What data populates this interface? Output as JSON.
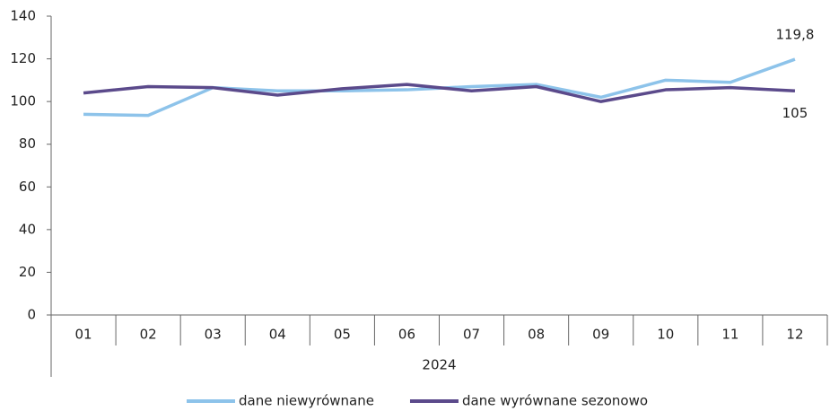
{
  "chart_data": {
    "type": "line",
    "categories": [
      "01",
      "02",
      "03",
      "04",
      "05",
      "06",
      "07",
      "08",
      "09",
      "10",
      "11",
      "12"
    ],
    "group_label": "2024",
    "series": [
      {
        "name": "dane niewyrównane",
        "color": "#8dc3ea",
        "values": [
          94,
          93.5,
          106.5,
          105,
          105,
          105.5,
          107,
          108,
          102,
          110,
          109,
          119.8
        ],
        "value_labels": [
          null,
          null,
          null,
          null,
          null,
          null,
          null,
          null,
          null,
          null,
          null,
          "119,8"
        ]
      },
      {
        "name": "dane wyrównane sezonowo",
        "color": "#5b4a8b",
        "values": [
          104,
          107,
          106.5,
          103,
          106,
          108,
          105,
          107,
          100,
          105.5,
          106.5,
          105
        ],
        "value_labels": [
          null,
          null,
          null,
          null,
          null,
          null,
          null,
          null,
          null,
          null,
          null,
          "105"
        ]
      }
    ],
    "ylim": [
      0,
      140
    ],
    "yticks": [
      0,
      20,
      40,
      60,
      80,
      100,
      120,
      140
    ],
    "legend": "bottom"
  }
}
